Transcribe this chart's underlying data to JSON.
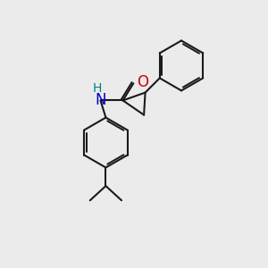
{
  "bg_color": "#ebebeb",
  "bond_color": "#1a1a1a",
  "N_color": "#0000cd",
  "O_color": "#cc0000",
  "H_color": "#008080",
  "line_width": 1.5,
  "font_size": 11,
  "figsize": [
    3.0,
    3.0
  ],
  "dpi": 100,
  "xlim": [
    0,
    10
  ],
  "ylim": [
    0,
    10
  ]
}
